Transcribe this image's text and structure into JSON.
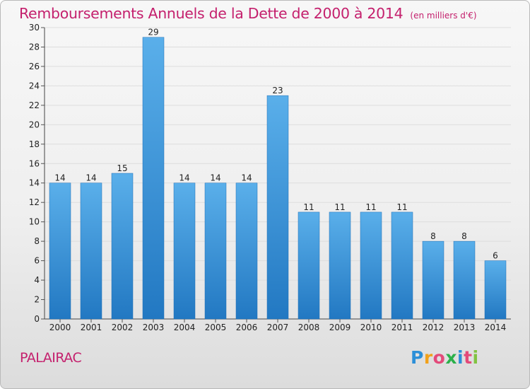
{
  "title": "Remboursements Annuels de la Dette de 2000 à 2014",
  "subtitle": "(en milliers d'€)",
  "commune": "PALAIRAC",
  "logo": [
    "P",
    "r",
    "o",
    "x",
    "i",
    "t",
    "i"
  ],
  "colors": {
    "title": "#c4206d",
    "bar_top": "#5aafea",
    "bar_bottom": "#2278c2"
  },
  "chart_data": {
    "type": "bar",
    "categories": [
      "2000",
      "2001",
      "2002",
      "2003",
      "2004",
      "2005",
      "2006",
      "2007",
      "2008",
      "2009",
      "2010",
      "2011",
      "2012",
      "2013",
      "2014"
    ],
    "values": [
      14,
      14,
      15,
      29,
      14,
      14,
      14,
      23,
      11,
      11,
      11,
      11,
      8,
      8,
      6
    ],
    "title": "Remboursements Annuels de la Dette de 2000 à 2014",
    "xlabel": "",
    "ylabel": "",
    "ylim": [
      0,
      30
    ],
    "yticks": [
      0,
      2,
      4,
      6,
      8,
      10,
      12,
      14,
      16,
      18,
      20,
      22,
      24,
      26,
      28,
      30
    ],
    "grid": "horizontal",
    "data_labels": true
  }
}
